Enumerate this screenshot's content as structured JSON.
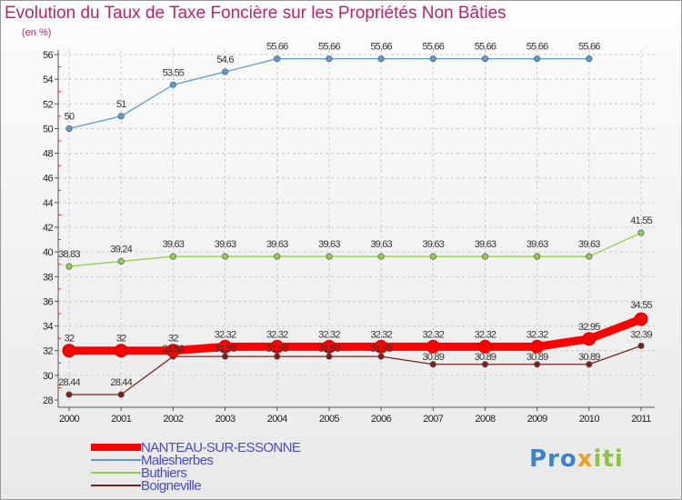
{
  "title": "Evolution du Taux de Taxe Foncière sur les Propriétés Non Bâties",
  "ylabel_text": "(en %)",
  "brand": {
    "parts": [
      "Pro",
      "x",
      "iti"
    ]
  },
  "chart_data": {
    "type": "line",
    "title": "Evolution du Taux de Taxe Foncière sur les Propriétés Non Bâties",
    "ylabel": "(en %)",
    "xlabel": "",
    "ylim": [
      28,
      56
    ],
    "ytick_step": 2,
    "x": [
      "2000",
      "2001",
      "2002",
      "2003",
      "2004",
      "2005",
      "2006",
      "2007",
      "2008",
      "2009",
      "2010",
      "2011"
    ],
    "legend_position": "bottom-left",
    "series": [
      {
        "name": "NANTEAU-SUR-ESSONNE",
        "color": "#ff0000",
        "width": "heavy",
        "values": [
          32,
          32,
          32,
          32.32,
          32.32,
          32.32,
          32.32,
          32.32,
          32.32,
          32.32,
          32.95,
          34.55
        ],
        "labels": [
          "32",
          "32",
          "32",
          "32.32",
          "32.32",
          "32.32",
          "32.32",
          "32.32",
          "32.32",
          "32.32",
          "32.95",
          "34.55"
        ]
      },
      {
        "name": "Malesherbes",
        "color": "#5b9bd5",
        "width": "thin",
        "values": [
          50,
          51,
          53.55,
          54.6,
          55.66,
          55.66,
          55.66,
          55.66,
          55.66,
          55.66,
          55.66,
          null
        ],
        "labels": [
          "50",
          "51",
          "53.55",
          "54.6",
          "55.66",
          "55.66",
          "55.66",
          "55.66",
          "55.66",
          "55.66",
          "55.66",
          ""
        ]
      },
      {
        "name": "Buthiers",
        "color": "#8fd14f",
        "width": "thin",
        "values": [
          38.83,
          39.24,
          39.63,
          39.63,
          39.63,
          39.63,
          39.63,
          39.63,
          39.63,
          39.63,
          39.63,
          41.55
        ],
        "labels": [
          "38.83",
          "39.24",
          "39.63",
          "39.63",
          "39.63",
          "39.63",
          "39.63",
          "39.63",
          "39.63",
          "39.63",
          "39.63",
          "41.55"
        ]
      },
      {
        "name": "Boigneville",
        "color": "#7b2020",
        "width": "thin",
        "values": [
          28.44,
          28.44,
          31.53,
          31.53,
          31.53,
          31.53,
          31.53,
          30.89,
          30.89,
          30.89,
          30.89,
          32.39
        ],
        "labels": [
          "28.44",
          "28.44",
          "31.53",
          "31.53",
          "31.53",
          "31.53",
          "31.53",
          "30.89",
          "30.89",
          "30.89",
          "30.89",
          "32.39"
        ]
      }
    ]
  }
}
